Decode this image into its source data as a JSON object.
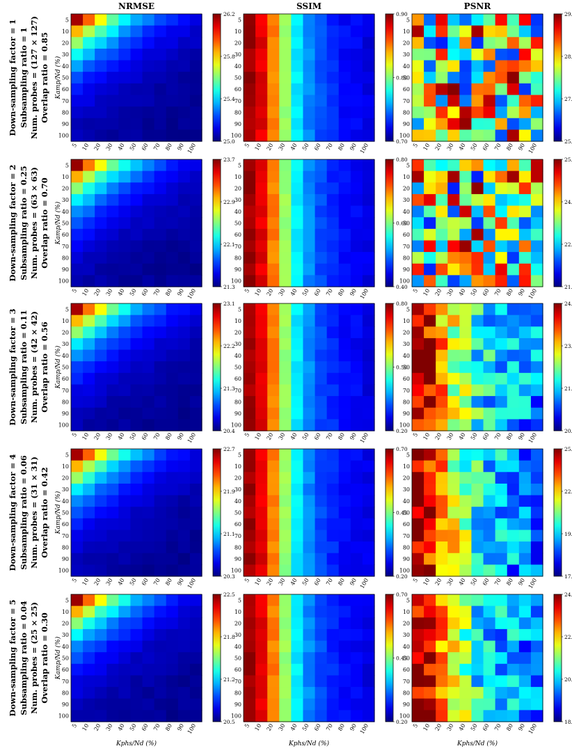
{
  "chart_data": {
    "type": "heatmap",
    "columns": [
      "NRMSE",
      "SSIM",
      "PSNR"
    ],
    "x_ticks": [
      "5",
      "10",
      "20",
      "30",
      "40",
      "50",
      "60",
      "70",
      "80",
      "90",
      "100"
    ],
    "y_ticks": [
      "5",
      "10",
      "20",
      "30",
      "40",
      "50",
      "60",
      "70",
      "80",
      "90",
      "100"
    ],
    "xlabel": "Kphs/Nd (%)",
    "ylabel": "Kamp/Nd (%)",
    "colormap": "jet",
    "rows": [
      {
        "labels": [
          "Down-sampling factor = 1",
          "Subsampling ratio = 1",
          "Num. probes = (127 × 127)",
          "Overlap ratio = 0.85"
        ],
        "panels": [
          {
            "metric": "NRMSE",
            "pattern": "decay",
            "range": [
              25.0,
              26.2
            ],
            "colorbar_ticks": [
              "26.2",
              "25.8",
              "25.4",
              "25.0"
            ]
          },
          {
            "metric": "SSIM",
            "pattern": "cols",
            "range": [
              0.7,
              0.9
            ],
            "colorbar_ticks": [
              "0.90",
              "0.80",
              "0.70"
            ]
          },
          {
            "metric": "PSNR",
            "pattern": "noisy",
            "range": [
              25.9,
              29.4
            ],
            "colorbar_ticks": [
              "29.4",
              "28.3",
              "27.1",
              "25.9"
            ]
          }
        ]
      },
      {
        "labels": [
          "Down-sampling factor = 2",
          "Subsampling ratio = 0.25",
          "Num. probes = (63 × 63)",
          "Overlap ratio = 0.70"
        ],
        "panels": [
          {
            "metric": "NRMSE",
            "pattern": "decay",
            "range": [
              21.3,
              23.7
            ],
            "colorbar_ticks": [
              "23.7",
              "22.9",
              "22.1",
              "21.3"
            ]
          },
          {
            "metric": "SSIM",
            "pattern": "cols",
            "range": [
              0.4,
              0.8
            ],
            "colorbar_ticks": [
              "0.80",
              "0.60",
              "0.40"
            ]
          },
          {
            "metric": "PSNR",
            "pattern": "noisy",
            "range": [
              21.2,
              25.6
            ],
            "colorbar_ticks": [
              "25.6",
              "24.1",
              "22.7",
              "21.2"
            ]
          }
        ]
      },
      {
        "labels": [
          "Down-sampling factor = 3",
          "Subsampling ratio = 0.11",
          "Num. probes = (42 × 42)",
          "Overlap ratio = 0.56"
        ],
        "panels": [
          {
            "metric": "NRMSE",
            "pattern": "decay",
            "range": [
              20.4,
              23.1
            ],
            "colorbar_ticks": [
              "23.1",
              "22.2",
              "21.3",
              "20.4"
            ]
          },
          {
            "metric": "SSIM",
            "pattern": "cols",
            "range": [
              0.2,
              0.8
            ],
            "colorbar_ticks": [
              "0.80",
              "0.50",
              "0.20"
            ]
          },
          {
            "metric": "PSNR",
            "pattern": "colsnoisy",
            "range": [
              20.3,
              24.7
            ],
            "colorbar_ticks": [
              "24.7",
              "23.2",
              "21.8",
              "20.3"
            ]
          }
        ]
      },
      {
        "labels": [
          "Down-sampling factor = 4",
          "Subsampling ratio = 0.06",
          "Num. probes = (31 × 31)",
          "Overlap ratio = 0.42"
        ],
        "panels": [
          {
            "metric": "NRMSE",
            "pattern": "decay",
            "range": [
              20.3,
              22.7
            ],
            "colorbar_ticks": [
              "22.7",
              "21.9",
              "21.1",
              "20.3"
            ]
          },
          {
            "metric": "SSIM",
            "pattern": "cols",
            "range": [
              0.2,
              0.7
            ],
            "colorbar_ticks": [
              "0.70",
              "0.45",
              "0.20"
            ]
          },
          {
            "metric": "PSNR",
            "pattern": "colsnoisy",
            "range": [
              17.1,
              25.0
            ],
            "colorbar_ticks": [
              "25.0",
              "22.4",
              "19.8",
              "17.1"
            ]
          }
        ]
      },
      {
        "labels": [
          "Down-sampling factor = 5",
          "Subsampling ratio = 0.04",
          "Num. probes = (25 × 25)",
          "Overlap ratio = 0.30"
        ],
        "panels": [
          {
            "metric": "NRMSE",
            "pattern": "decay",
            "range": [
              20.5,
              22.5
            ],
            "colorbar_ticks": [
              "22.5",
              "21.8",
              "21.2",
              "20.5"
            ]
          },
          {
            "metric": "SSIM",
            "pattern": "cols",
            "range": [
              0.2,
              0.7
            ],
            "colorbar_ticks": [
              "0.70",
              "0.45",
              "0.20"
            ]
          },
          {
            "metric": "PSNR",
            "pattern": "colsnoisy",
            "range": [
              18.8,
              24.6
            ],
            "colorbar_ticks": [
              "24.6",
              "22.7",
              "20.7",
              "18.8"
            ]
          }
        ]
      }
    ]
  }
}
